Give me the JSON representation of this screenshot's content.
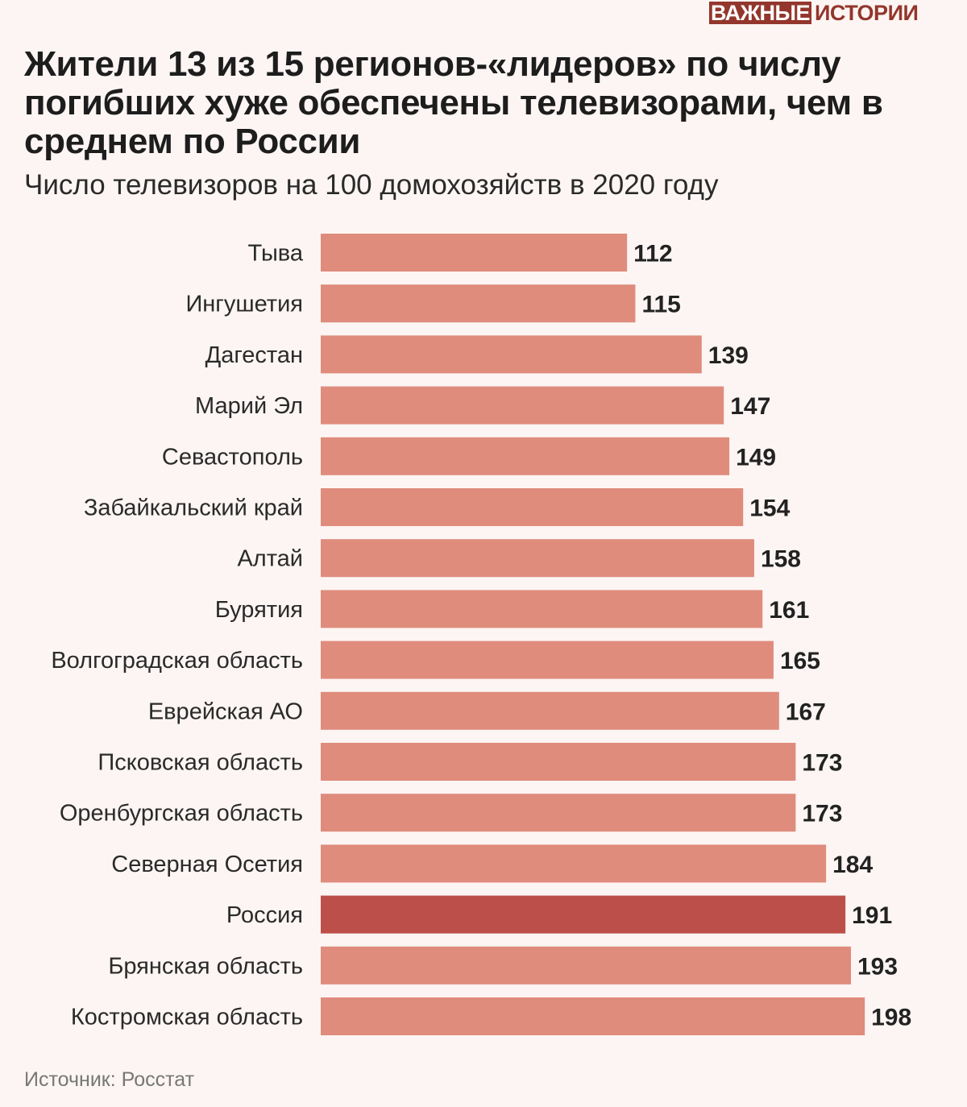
{
  "logo": {
    "part1": "ВАЖНЫЕ",
    "part2": "ИСТОРИИ"
  },
  "source": "Источник: Росстат",
  "colors": {
    "bar": "#df8c7c",
    "highlight": "#bc4f4a",
    "background": "#fcf5f3"
  },
  "chart_data": {
    "type": "bar",
    "orientation": "horizontal",
    "title": "Жители 13 из 15 регионов-«лидеров» по числу погибших хуже обеспечены телевизорами, чем в среднем по России",
    "subtitle": "Число телевизоров на 100 домохозяйств в 2020 году",
    "xlabel": "",
    "ylabel": "",
    "xlim": [
      0,
      198
    ],
    "grid": false,
    "categories": [
      "Тыва",
      "Ингушетия",
      "Дагестан",
      "Марий Эл",
      "Севастополь",
      "Забайкальский край",
      "Алтай",
      "Бурятия",
      "Волгоградская область",
      "Еврейская АО",
      "Псковская область",
      "Оренбургская область",
      "Северная Осетия",
      "Россия",
      "Брянская область",
      "Костромская область"
    ],
    "values": [
      112,
      115,
      139,
      147,
      149,
      154,
      158,
      161,
      165,
      167,
      173,
      173,
      184,
      191,
      193,
      198
    ],
    "highlight": "Россия"
  }
}
